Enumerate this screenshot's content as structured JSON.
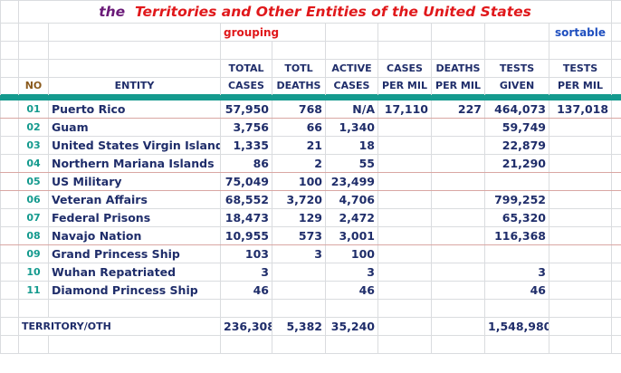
{
  "title": {
    "prefix": "the",
    "main": "Territories and Other Entities of the United States"
  },
  "labels": {
    "grouping": "grouping",
    "sortable": "sortable"
  },
  "headers": {
    "row1": [
      "",
      "",
      "TOTAL",
      "TOTL",
      "ACTIVE",
      "CASES",
      "DEATHS",
      "TESTS",
      "TESTS"
    ],
    "row2": [
      "NO",
      "ENTITY",
      "CASES",
      "DEATHS",
      "CASES",
      "PER MIL",
      "PER MIL",
      "GIVEN",
      "PER MIL"
    ]
  },
  "rows": [
    {
      "no": "01",
      "entity": "Puerto Rico",
      "total_cases": "57,950",
      "total_deaths": "768",
      "active_cases": "N/A",
      "cases_per_mil": "17,110",
      "deaths_per_mil": "227",
      "tests_given": "464,073",
      "tests_per_mil": "137,018"
    },
    {
      "no": "02",
      "entity": "Guam",
      "total_cases": "3,756",
      "total_deaths": "66",
      "active_cases": "1,340",
      "cases_per_mil": "",
      "deaths_per_mil": "",
      "tests_given": "59,749",
      "tests_per_mil": ""
    },
    {
      "no": "03",
      "entity": "United States Virgin Islands",
      "total_cases": "1,335",
      "total_deaths": "21",
      "active_cases": "18",
      "cases_per_mil": "",
      "deaths_per_mil": "",
      "tests_given": "22,879",
      "tests_per_mil": ""
    },
    {
      "no": "04",
      "entity": "Northern Mariana Islands",
      "total_cases": "86",
      "total_deaths": "2",
      "active_cases": "55",
      "cases_per_mil": "",
      "deaths_per_mil": "",
      "tests_given": "21,290",
      "tests_per_mil": ""
    },
    {
      "no": "05",
      "entity": "US Military",
      "total_cases": "75,049",
      "total_deaths": "100",
      "active_cases": "23,499",
      "cases_per_mil": "",
      "deaths_per_mil": "",
      "tests_given": "",
      "tests_per_mil": ""
    },
    {
      "no": "06",
      "entity": "Veteran Affairs",
      "total_cases": "68,552",
      "total_deaths": "3,720",
      "active_cases": "4,706",
      "cases_per_mil": "",
      "deaths_per_mil": "",
      "tests_given": "799,252",
      "tests_per_mil": ""
    },
    {
      "no": "07",
      "entity": "Federal Prisons",
      "total_cases": "18,473",
      "total_deaths": "129",
      "active_cases": "2,472",
      "cases_per_mil": "",
      "deaths_per_mil": "",
      "tests_given": "65,320",
      "tests_per_mil": ""
    },
    {
      "no": "08",
      "entity": "Navajo Nation",
      "total_cases": "10,955",
      "total_deaths": "573",
      "active_cases": "3,001",
      "cases_per_mil": "",
      "deaths_per_mil": "",
      "tests_given": "116,368",
      "tests_per_mil": ""
    },
    {
      "no": "09",
      "entity": "Grand Princess Ship",
      "total_cases": "103",
      "total_deaths": "3",
      "active_cases": "100",
      "cases_per_mil": "",
      "deaths_per_mil": "",
      "tests_given": "",
      "tests_per_mil": ""
    },
    {
      "no": "10",
      "entity": "Wuhan Repatriated",
      "total_cases": "3",
      "total_deaths": "",
      "active_cases": "3",
      "cases_per_mil": "",
      "deaths_per_mil": "",
      "tests_given": "3",
      "tests_per_mil": ""
    },
    {
      "no": "11",
      "entity": "Diamond Princess Ship",
      "total_cases": "46",
      "total_deaths": "",
      "active_cases": "46",
      "cases_per_mil": "",
      "deaths_per_mil": "",
      "tests_given": "46",
      "tests_per_mil": ""
    }
  ],
  "total": {
    "label": "TERRITORY/OTH",
    "total_cases": "236,308",
    "total_deaths": "5,382",
    "active_cases": "35,240",
    "tests_given": "1,548,980"
  },
  "colors": {
    "accent_bar": "#149a8e",
    "title_red": "#e0181b",
    "title_purple": "#6a1a78",
    "text_navy": "#1f2d6a",
    "link_blue": "#1f4fbf",
    "group_separator": "#d9a7a3"
  }
}
